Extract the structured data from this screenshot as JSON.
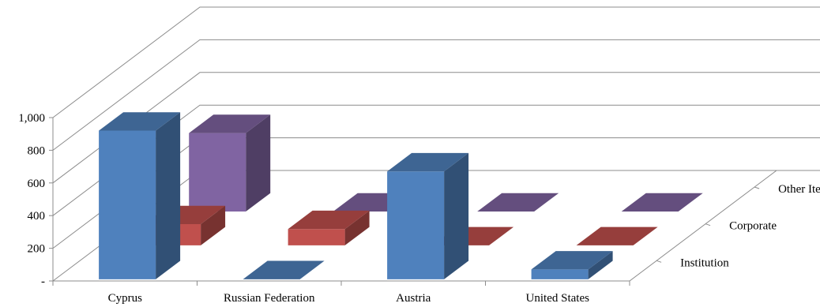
{
  "chart_data": {
    "type": "bar",
    "variant": "3d-column",
    "title": "",
    "xlabel": "",
    "ylabel": "",
    "categories": [
      "Cyprus",
      "Russian Federation",
      "Austria",
      "United States"
    ],
    "ylim": [
      0,
      1000
    ],
    "y_ticks": [
      "-",
      "200",
      "400",
      "600",
      "800",
      "1,000"
    ],
    "y_tick_values": [
      0,
      200,
      400,
      600,
      800,
      1000
    ],
    "grid": true,
    "series": [
      {
        "name": "Institution",
        "color": "#4f81bd",
        "values": [
          910,
          0,
          660,
          60
        ]
      },
      {
        "name": "Corporate",
        "color": "#c0504d",
        "values": [
          130,
          100,
          0,
          0
        ]
      },
      {
        "name": "Other Items",
        "color": "#8064a2",
        "values": [
          480,
          0,
          0,
          0
        ]
      }
    ]
  }
}
